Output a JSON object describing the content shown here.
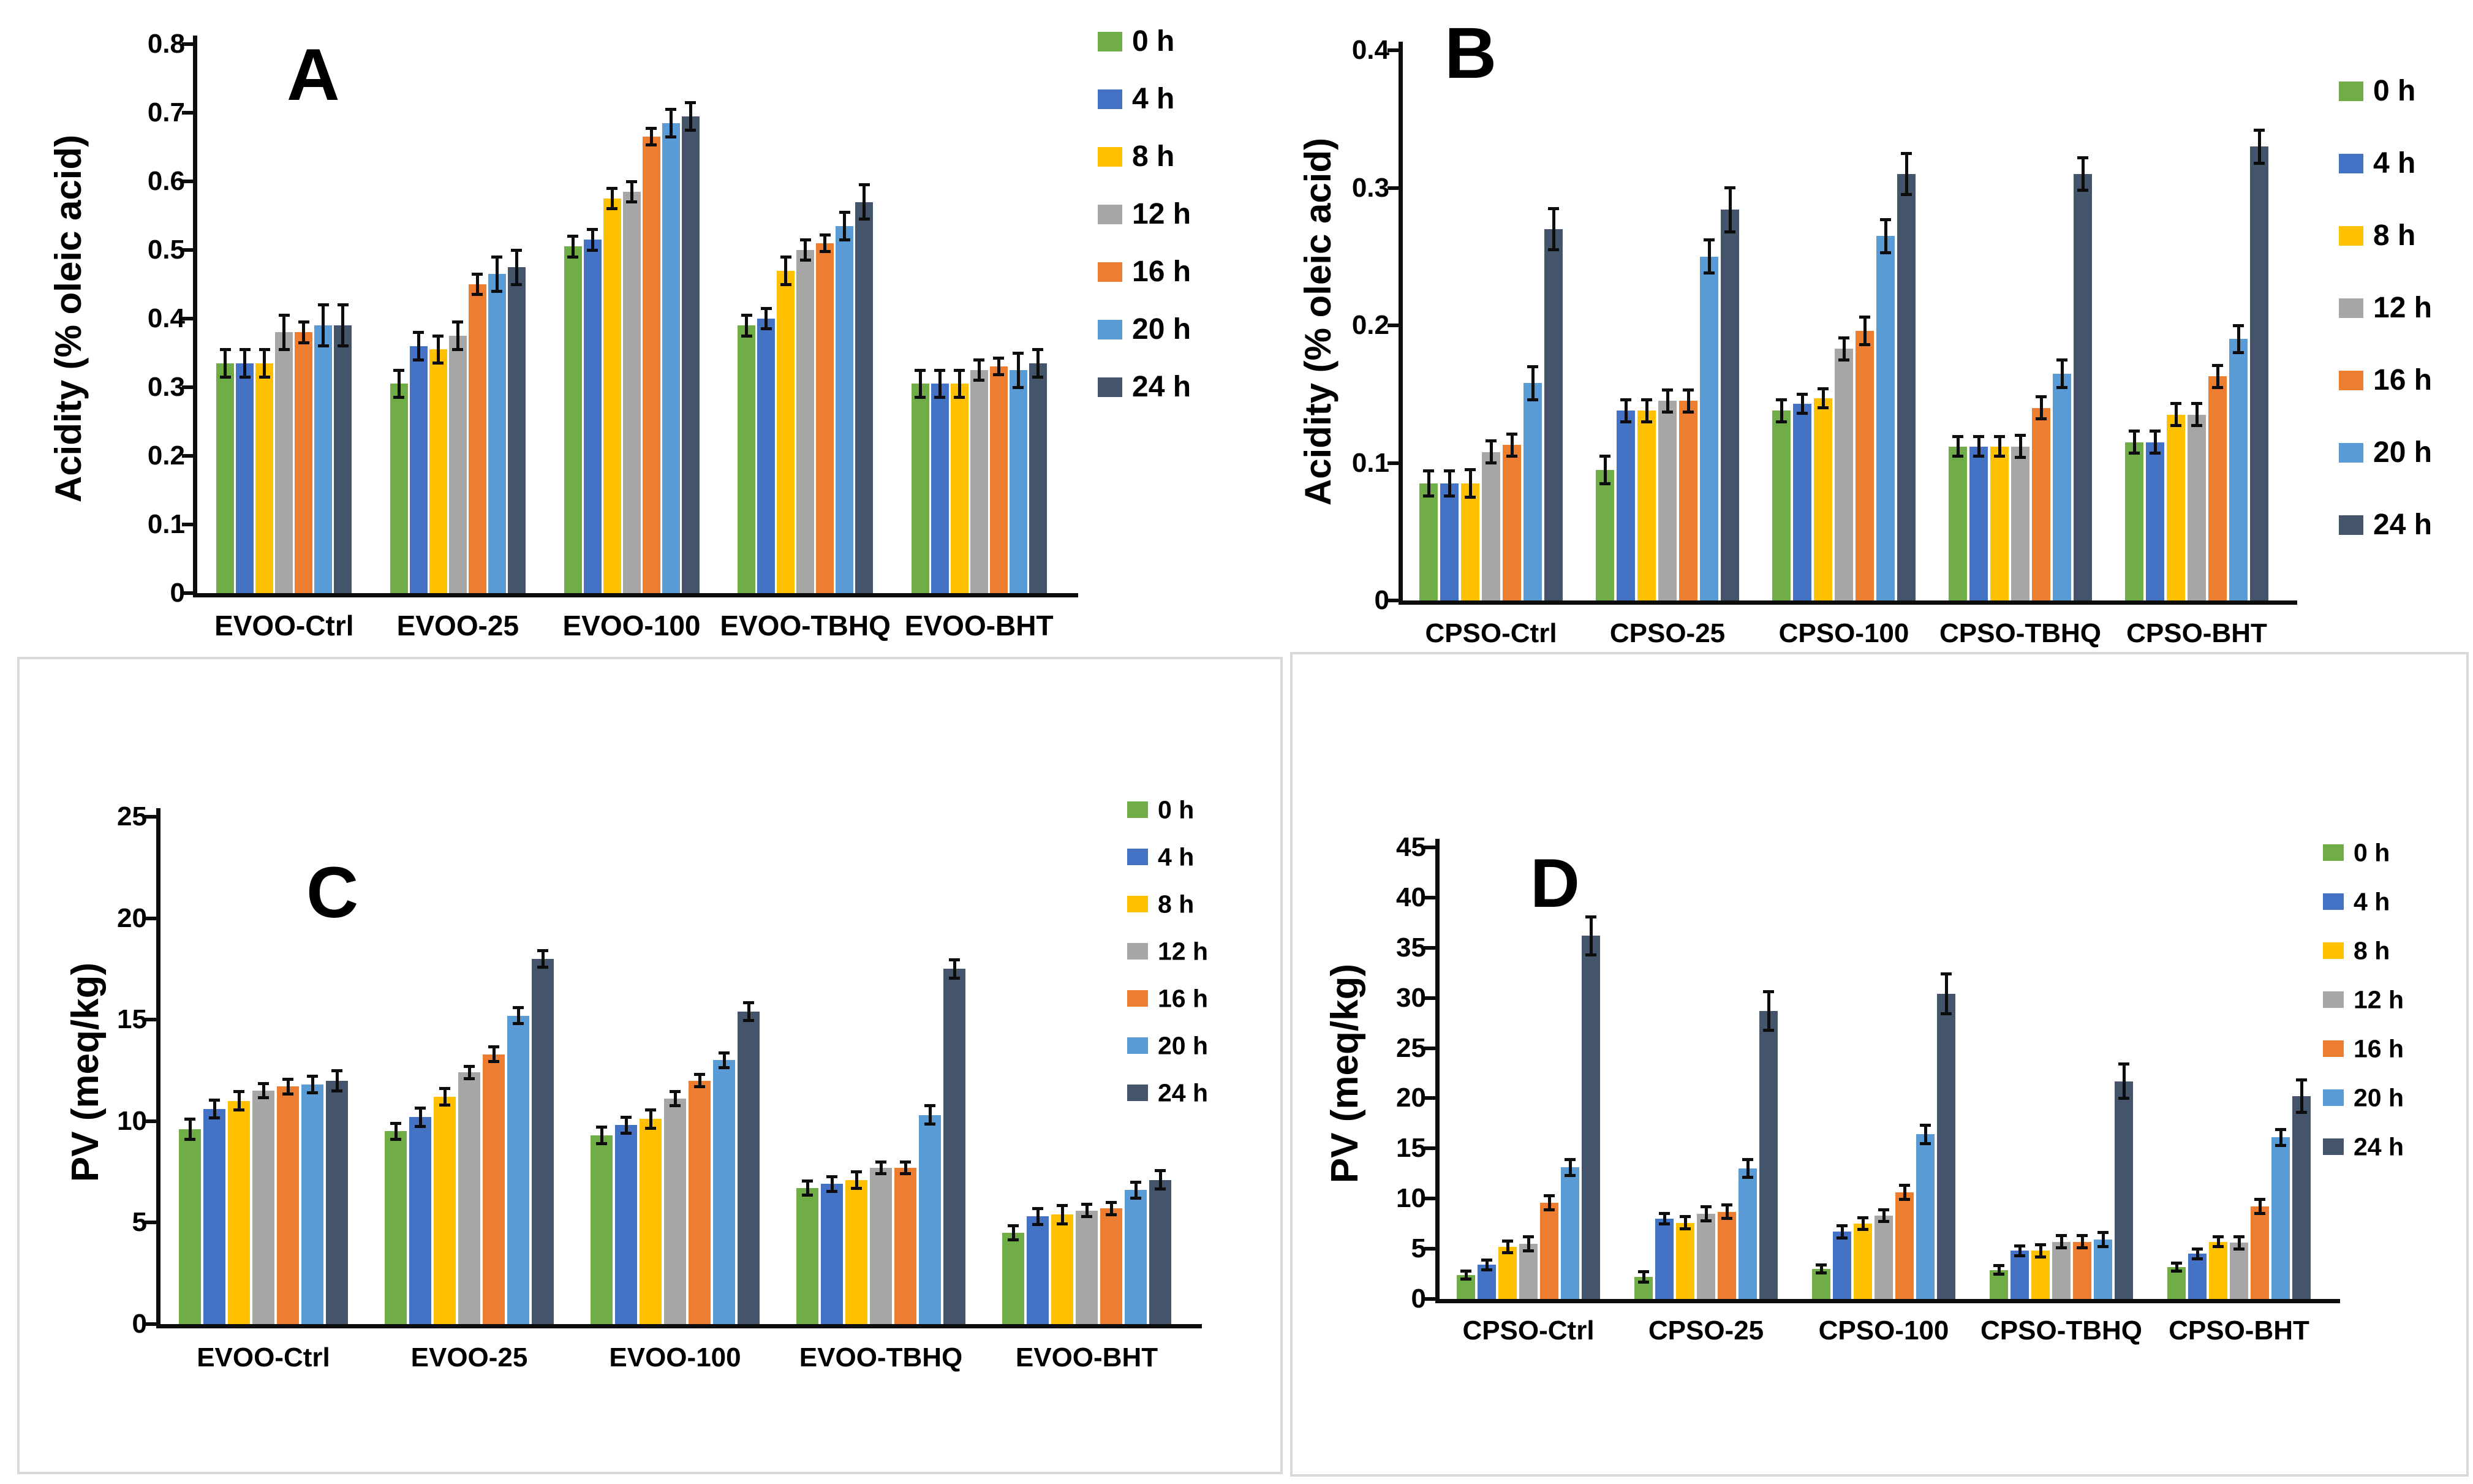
{
  "figure": {
    "background": "#ffffff",
    "text_color": "#000000",
    "axis_color": "#0d0d0d",
    "error_bar_color": "#0d0d0d",
    "panel_border_color": "#d9d9d9",
    "series_labels": [
      "0 h",
      "4 h",
      "8 h",
      "12 h",
      "16 h",
      "20 h",
      "24 h"
    ],
    "series_colors": [
      "#70AD47",
      "#4472C4",
      "#FFC000",
      "#A6A6A6",
      "#ED7D31",
      "#5B9BD5",
      "#44546A"
    ]
  },
  "chart_data": [
    {
      "id": "A",
      "type": "bar",
      "panel_label": "A",
      "ylabel": "Acidity (% oleic acid)",
      "xlabel": "",
      "ylim": [
        0,
        0.8
      ],
      "ytick_step": 0.1,
      "ytick_labels": [
        "0",
        "0.1",
        "0.2",
        "0.3",
        "0.4",
        "0.5",
        "0.6",
        "0.7",
        "0.8"
      ],
      "grid": false,
      "legend_position": "right-top",
      "categories": [
        "EVOO-Ctrl",
        "EVOO-25",
        "EVOO-100",
        "EVOO-TBHQ",
        "EVOO-BHT"
      ],
      "series": [
        {
          "name": "0 h",
          "values": [
            0.335,
            0.305,
            0.505,
            0.39,
            0.305
          ],
          "errors": [
            0.02,
            0.02,
            0.015,
            0.015,
            0.02
          ]
        },
        {
          "name": "4 h",
          "values": [
            0.335,
            0.36,
            0.515,
            0.4,
            0.305
          ],
          "errors": [
            0.02,
            0.02,
            0.015,
            0.015,
            0.02
          ]
        },
        {
          "name": "8 h",
          "values": [
            0.335,
            0.355,
            0.575,
            0.47,
            0.305
          ],
          "errors": [
            0.02,
            0.02,
            0.015,
            0.02,
            0.02
          ]
        },
        {
          "name": "12 h",
          "values": [
            0.38,
            0.375,
            0.585,
            0.5,
            0.325
          ],
          "errors": [
            0.025,
            0.02,
            0.015,
            0.015,
            0.015
          ]
        },
        {
          "name": "16 h",
          "values": [
            0.38,
            0.45,
            0.665,
            0.51,
            0.33
          ],
          "errors": [
            0.015,
            0.015,
            0.012,
            0.012,
            0.012
          ]
        },
        {
          "name": "20 h",
          "values": [
            0.39,
            0.465,
            0.685,
            0.535,
            0.325
          ],
          "errors": [
            0.03,
            0.025,
            0.02,
            0.02,
            0.025
          ]
        },
        {
          "name": "24 h",
          "values": [
            0.39,
            0.475,
            0.695,
            0.57,
            0.335
          ],
          "errors": [
            0.03,
            0.025,
            0.02,
            0.025,
            0.02
          ]
        }
      ]
    },
    {
      "id": "B",
      "type": "bar",
      "panel_label": "B",
      "ylabel": "Acidity (% oleic acid)",
      "xlabel": "",
      "ylim": [
        0,
        0.4
      ],
      "ytick_step": 0.1,
      "ytick_labels": [
        "0",
        "0.1",
        "0.2",
        "0.3",
        "0.4"
      ],
      "grid": false,
      "legend_position": "right-top",
      "categories": [
        "CPSO-Ctrl",
        "CPSO-25",
        "CPSO-100",
        "CPSO-TBHQ",
        "CPSO-BHT"
      ],
      "series": [
        {
          "name": "0 h",
          "values": [
            0.085,
            0.095,
            0.138,
            0.112,
            0.115
          ],
          "errors": [
            0.009,
            0.01,
            0.008,
            0.007,
            0.008
          ]
        },
        {
          "name": "4 h",
          "values": [
            0.085,
            0.138,
            0.143,
            0.112,
            0.115
          ],
          "errors": [
            0.009,
            0.008,
            0.007,
            0.007,
            0.008
          ]
        },
        {
          "name": "8 h",
          "values": [
            0.085,
            0.138,
            0.147,
            0.112,
            0.135
          ],
          "errors": [
            0.01,
            0.008,
            0.007,
            0.007,
            0.008
          ]
        },
        {
          "name": "12 h",
          "values": [
            0.108,
            0.145,
            0.183,
            0.112,
            0.135
          ],
          "errors": [
            0.008,
            0.008,
            0.008,
            0.008,
            0.008
          ]
        },
        {
          "name": "16 h",
          "values": [
            0.113,
            0.145,
            0.196,
            0.14,
            0.163
          ],
          "errors": [
            0.008,
            0.008,
            0.01,
            0.008,
            0.008
          ]
        },
        {
          "name": "20 h",
          "values": [
            0.158,
            0.25,
            0.265,
            0.165,
            0.19
          ],
          "errors": [
            0.012,
            0.012,
            0.012,
            0.01,
            0.01
          ]
        },
        {
          "name": "24 h",
          "values": [
            0.27,
            0.284,
            0.31,
            0.31,
            0.33
          ],
          "errors": [
            0.015,
            0.016,
            0.015,
            0.012,
            0.012
          ]
        }
      ]
    },
    {
      "id": "C",
      "type": "bar",
      "panel_label": "C",
      "ylabel": "PV (meq/kg)",
      "xlabel": "",
      "ylim": [
        0,
        25
      ],
      "ytick_step": 5,
      "ytick_labels": [
        "0",
        "5",
        "10",
        "15",
        "20",
        "25"
      ],
      "grid": false,
      "legend_position": "right-top",
      "categories": [
        "EVOO-Ctrl",
        "EVOO-25",
        "EVOO-100",
        "EVOO-TBHQ",
        "EVOO-BHT"
      ],
      "series": [
        {
          "name": "0 h",
          "values": [
            9.6,
            9.5,
            9.3,
            6.7,
            4.5
          ],
          "errors": [
            0.5,
            0.4,
            0.4,
            0.35,
            0.35
          ]
        },
        {
          "name": "4 h",
          "values": [
            10.6,
            10.2,
            9.8,
            6.9,
            5.3
          ],
          "errors": [
            0.45,
            0.45,
            0.4,
            0.35,
            0.4
          ]
        },
        {
          "name": "8 h",
          "values": [
            11.0,
            11.2,
            10.1,
            7.1,
            5.4
          ],
          "errors": [
            0.45,
            0.4,
            0.45,
            0.4,
            0.45
          ]
        },
        {
          "name": "12 h",
          "values": [
            11.5,
            12.4,
            11.1,
            7.7,
            5.6
          ],
          "errors": [
            0.35,
            0.3,
            0.35,
            0.3,
            0.3
          ]
        },
        {
          "name": "16 h",
          "values": [
            11.7,
            13.3,
            12.0,
            7.7,
            5.7
          ],
          "errors": [
            0.35,
            0.35,
            0.3,
            0.3,
            0.3
          ]
        },
        {
          "name": "20 h",
          "values": [
            11.8,
            15.2,
            13.0,
            10.3,
            6.6
          ],
          "errors": [
            0.4,
            0.4,
            0.35,
            0.45,
            0.4
          ]
        },
        {
          "name": "24 h",
          "values": [
            12.0,
            18.0,
            15.4,
            17.5,
            7.1
          ],
          "errors": [
            0.5,
            0.4,
            0.45,
            0.45,
            0.45
          ]
        }
      ]
    },
    {
      "id": "D",
      "type": "bar",
      "panel_label": "D",
      "ylabel": "PV (meq/kg)",
      "xlabel": "",
      "ylim": [
        0,
        45
      ],
      "ytick_step": 5,
      "ytick_labels": [
        "0",
        "5",
        "10",
        "15",
        "20",
        "25",
        "30",
        "35",
        "40",
        "45"
      ],
      "grid": false,
      "legend_position": "right-top",
      "categories": [
        "CPSO-Ctrl",
        "CPSO-25",
        "CPSO-100",
        "CPSO-TBHQ",
        "CPSO-BHT"
      ],
      "series": [
        {
          "name": "0 h",
          "values": [
            2.4,
            2.2,
            3.0,
            2.9,
            3.2
          ],
          "errors": [
            0.4,
            0.5,
            0.4,
            0.4,
            0.4
          ]
        },
        {
          "name": "4 h",
          "values": [
            3.4,
            8.0,
            6.7,
            4.8,
            4.5
          ],
          "errors": [
            0.5,
            0.5,
            0.6,
            0.5,
            0.5
          ]
        },
        {
          "name": "8 h",
          "values": [
            5.2,
            7.6,
            7.5,
            4.8,
            5.7
          ],
          "errors": [
            0.6,
            0.6,
            0.6,
            0.6,
            0.5
          ]
        },
        {
          "name": "12 h",
          "values": [
            5.5,
            8.5,
            8.3,
            5.7,
            5.6
          ],
          "errors": [
            0.7,
            0.7,
            0.6,
            0.6,
            0.6
          ]
        },
        {
          "name": "16 h",
          "values": [
            9.6,
            8.7,
            10.6,
            5.7,
            9.2
          ],
          "errors": [
            0.7,
            0.7,
            0.7,
            0.6,
            0.7
          ]
        },
        {
          "name": "20 h",
          "values": [
            13.1,
            13.0,
            16.4,
            5.9,
            16.1
          ],
          "errors": [
            0.8,
            0.9,
            0.9,
            0.7,
            0.8
          ]
        },
        {
          "name": "24 h",
          "values": [
            36.2,
            28.7,
            30.4,
            21.7,
            20.2
          ],
          "errors": [
            1.9,
            1.9,
            2.0,
            1.7,
            1.6
          ]
        }
      ]
    }
  ]
}
